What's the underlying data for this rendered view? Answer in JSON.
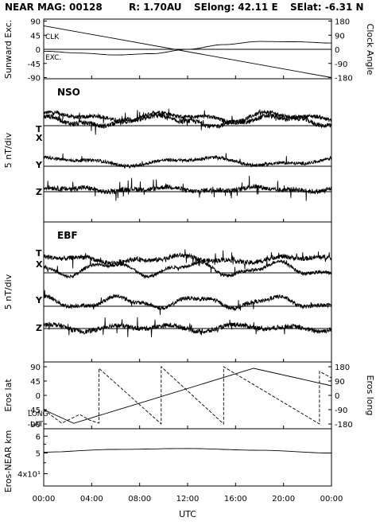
{
  "header": {
    "instrument": "NEAR MAG: 00128",
    "range": "R: 1.70AU",
    "selong": "SElong:   42.11 E",
    "selat": "SElat:   -6.31 N"
  },
  "chart_data": [
    {
      "type": "line",
      "panel": "angles",
      "ylabel_left": "Sunward Exc.",
      "ylabel_right": "Clock Angle",
      "left_ticks": [
        "90",
        "45",
        "0",
        "-45",
        "-90"
      ],
      "right_ticks": [
        "180",
        "90",
        "0",
        "-90",
        "-180"
      ],
      "ylim_left": [
        -90,
        90
      ],
      "ylim_right": [
        -180,
        180
      ],
      "series": [
        {
          "name": "CLK",
          "axis": "right",
          "x": [
            0,
            24
          ],
          "y": [
            150,
            -180
          ]
        },
        {
          "name": "EXC.",
          "axis": "left",
          "x": [
            0,
            3,
            6,
            9,
            12,
            15,
            18,
            21,
            24
          ],
          "y": [
            -6,
            -12,
            -18,
            -14,
            0,
            15,
            25,
            24,
            20
          ]
        }
      ]
    },
    {
      "type": "line",
      "panel": "NSO",
      "label": "NSO",
      "ylabel": "5 nT/div",
      "traces": [
        "T",
        "X",
        "Y",
        "Z"
      ]
    },
    {
      "type": "line",
      "panel": "EBF",
      "label": "EBF",
      "ylabel": "5 nT/div",
      "traces": [
        "T",
        "X",
        "Y",
        "Z"
      ]
    },
    {
      "type": "line",
      "panel": "eros",
      "ylabel_left": "Eros lat",
      "ylabel_right": "Eros long",
      "left_ticks": [
        "90",
        "45",
        "0",
        "-45",
        "-90"
      ],
      "right_ticks": [
        "180",
        "90",
        "0",
        "-90",
        "-180"
      ],
      "ylim_left": [
        -90,
        90
      ],
      "ylim_right": [
        -180,
        180
      ],
      "series": [
        {
          "name": "LAT",
          "axis": "left",
          "x": [
            0,
            2.5,
            17.5,
            24
          ],
          "y": [
            -45,
            -88,
            85,
            30
          ]
        },
        {
          "name": "LONG",
          "axis": "right",
          "x": [
            0,
            1.5,
            3,
            3.8,
            4.6,
            4.6,
            9.8,
            9.8,
            15,
            15,
            23,
            23,
            24
          ],
          "y": [
            -90,
            -175,
            -120,
            -155,
            -175,
            170,
            -180,
            180,
            -180,
            180,
            -180,
            150,
            110
          ]
        }
      ],
      "left_axis_lettering": [
        "LONG",
        "LAT"
      ]
    },
    {
      "type": "line",
      "panel": "distance",
      "ylabel": "Eros-NEAR km",
      "scale": "log",
      "tick_labels": [
        "6",
        "5",
        "4x10¹"
      ],
      "series": [
        {
          "x": [
            0,
            6,
            12,
            18,
            24
          ],
          "y": [
            50.5,
            52,
            52.5,
            51.5,
            50
          ]
        }
      ],
      "xlabel": "UTC",
      "x_ticks": [
        "00:00",
        "04:00",
        "08:00",
        "12:00",
        "16:00",
        "20:00",
        "00:00"
      ],
      "xlim": [
        0,
        24
      ]
    }
  ]
}
